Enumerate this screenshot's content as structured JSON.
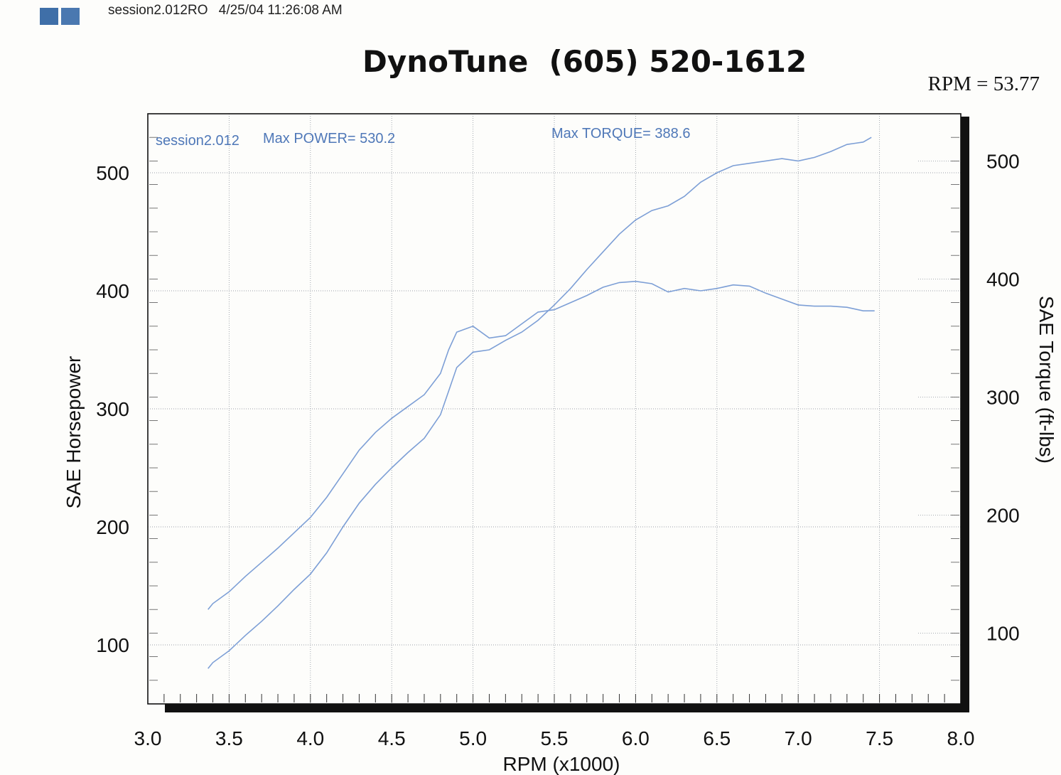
{
  "header": {
    "squares": [
      "box-1",
      "box-2"
    ],
    "session": "session2.012RO",
    "datetime": "4/25/04 11:26:08 AM"
  },
  "title": "DynoTune  (605) 520-1612",
  "rpm_readout": "RPM = 53.77",
  "colors": {
    "curve": "#7d9fd6",
    "annotation": "#4f78b8",
    "frame": "#111111",
    "grid": "#9aa0a8"
  },
  "chart_data": {
    "type": "line",
    "xlabel": "RPM (x1000)",
    "ylabel_left": "SAE Horsepower",
    "ylabel_right": "SAE Torque (ft-lbs)",
    "xlim": [
      3.0,
      8.0
    ],
    "ylim_left": [
      50,
      550
    ],
    "ylim_right": [
      40,
      540
    ],
    "x_ticks": [
      "3.0",
      "3.5",
      "4.0",
      "4.5",
      "5.0",
      "5.5",
      "6.0",
      "6.5",
      "7.0",
      "7.5",
      "8.0"
    ],
    "y_ticks_left": [
      "100",
      "200",
      "300",
      "400",
      "500"
    ],
    "y_ticks_right": [
      "100",
      "200",
      "300",
      "400",
      "500"
    ],
    "grid": true,
    "annotations": {
      "run_label": "session2.012",
      "max_power": "Max POWER= 530.2",
      "max_torque": "Max TORQUE= 388.6"
    },
    "series": [
      {
        "axis": "left",
        "x": [
          3.37,
          3.4,
          3.5,
          3.6,
          3.7,
          3.8,
          3.9,
          4.0,
          4.1,
          4.2,
          4.3,
          4.4,
          4.5,
          4.6,
          4.7,
          4.8,
          4.85,
          4.9,
          5.0,
          5.1,
          5.2,
          5.3,
          5.4,
          5.5,
          5.6,
          5.7,
          5.8,
          5.9,
          6.0,
          6.1,
          6.2,
          6.3,
          6.4,
          6.5,
          6.6,
          6.7,
          6.8,
          6.9,
          7.0,
          7.1,
          7.2,
          7.3,
          7.35,
          7.4,
          7.45
        ],
        "y": [
          80,
          85,
          95,
          108,
          120,
          133,
          147,
          160,
          178,
          200,
          220,
          236,
          250,
          263,
          275,
          295,
          315,
          335,
          348,
          350,
          358,
          365,
          375,
          388,
          402,
          418,
          433,
          448,
          460,
          468,
          472,
          480,
          492,
          500,
          506,
          508,
          510,
          512,
          510,
          513,
          518,
          524,
          525,
          526,
          530
        ]
      },
      {
        "axis": "right",
        "x": [
          3.37,
          3.4,
          3.5,
          3.6,
          3.7,
          3.8,
          3.9,
          4.0,
          4.1,
          4.2,
          4.3,
          4.4,
          4.5,
          4.6,
          4.7,
          4.8,
          4.85,
          4.9,
          5.0,
          5.1,
          5.2,
          5.3,
          5.4,
          5.5,
          5.6,
          5.7,
          5.8,
          5.9,
          6.0,
          6.1,
          6.2,
          6.3,
          6.4,
          6.5,
          6.6,
          6.7,
          6.8,
          6.9,
          7.0,
          7.1,
          7.2,
          7.3,
          7.4,
          7.47
        ],
        "y": [
          120,
          125,
          135,
          148,
          160,
          172,
          185,
          198,
          215,
          235,
          255,
          270,
          282,
          292,
          302,
          320,
          340,
          355,
          360,
          350,
          352,
          362,
          372,
          374,
          380,
          386,
          393,
          397,
          398,
          396,
          389,
          392,
          390,
          392,
          395,
          394,
          388,
          383,
          378,
          377,
          377,
          376,
          373,
          373
        ]
      }
    ]
  }
}
